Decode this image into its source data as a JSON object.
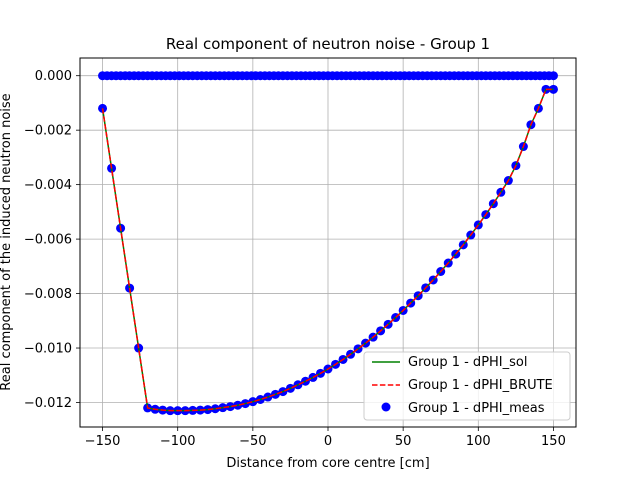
{
  "chart_data": {
    "type": "line",
    "title": "Real component of neutron noise - Group 1",
    "xlabel": "Distance from core centre [cm]",
    "ylabel": "Real component of the induced neutron noise",
    "xlim": [
      -165,
      165
    ],
    "ylim": [
      -0.0129,
      0.00065
    ],
    "grid": true,
    "legend_position": "lower-right",
    "x_ticks": [
      -150,
      -100,
      -50,
      0,
      50,
      100,
      150
    ],
    "x_tick_labels": [
      "−150",
      "−100",
      "−50",
      "0",
      "50",
      "100",
      "150"
    ],
    "y_ticks": [
      0.0,
      -0.002,
      -0.004,
      -0.006,
      -0.008,
      -0.01,
      -0.012
    ],
    "y_tick_labels": [
      "0.000",
      "−0.002",
      "−0.004",
      "−0.006",
      "−0.008",
      "−0.010",
      "−0.012"
    ],
    "x": [
      -150,
      -145,
      -140,
      -135,
      -130,
      -125,
      -120,
      -115,
      -110,
      -105,
      -100,
      -95,
      -90,
      -85,
      -80,
      -75,
      -70,
      -65,
      -60,
      -55,
      -50,
      -45,
      -40,
      -35,
      -30,
      -25,
      -20,
      -15,
      -10,
      -5,
      0,
      5,
      10,
      15,
      20,
      25,
      30,
      35,
      40,
      45,
      50,
      55,
      60,
      65,
      70,
      75,
      80,
      85,
      90,
      95,
      100,
      105,
      110,
      115,
      120,
      125,
      130,
      135,
      140,
      145,
      150
    ],
    "series": [
      {
        "name": "Group 1 - dPHI_sol",
        "kind": "line",
        "color": "#008000",
        "style": "solid",
        "x": [
          -150,
          -144,
          -138,
          -132,
          -126,
          -120,
          -115,
          -110,
          -105,
          -100,
          -95,
          -90,
          -85,
          -80,
          -75,
          -70,
          -65,
          -60,
          -55,
          -50,
          -45,
          -40,
          -35,
          -30,
          -25,
          -20,
          -15,
          -10,
          -5,
          0,
          5,
          10,
          15,
          20,
          25,
          30,
          35,
          40,
          45,
          50,
          55,
          60,
          65,
          70,
          75,
          80,
          85,
          90,
          95,
          100,
          105,
          110,
          115,
          120,
          125,
          130,
          135,
          140,
          145,
          150
        ],
        "values": [
          -0.0012,
          -0.0034,
          -0.0056,
          -0.0078,
          -0.01,
          -0.0122,
          -0.01225,
          -0.01228,
          -0.0123,
          -0.0123,
          -0.0123,
          -0.01229,
          -0.01228,
          -0.01226,
          -0.01223,
          -0.01219,
          -0.01215,
          -0.0121,
          -0.01204,
          -0.01197,
          -0.01189,
          -0.0118,
          -0.0117,
          -0.0116,
          -0.01148,
          -0.01135,
          -0.01122,
          -0.01108,
          -0.01093,
          -0.01077,
          -0.0106,
          -0.01042,
          -0.01023,
          -0.01003,
          -0.00982,
          -0.0096,
          -0.00937,
          -0.00913,
          -0.00888,
          -0.00862,
          -0.00835,
          -0.00808,
          -0.00779,
          -0.0075,
          -0.00719,
          -0.00688,
          -0.00655,
          -0.00621,
          -0.00585,
          -0.00548,
          -0.0051,
          -0.0047,
          -0.00428,
          -0.00385,
          -0.0033,
          -0.0026,
          -0.0018,
          -0.0012,
          -0.0005,
          -0.0005
        ]
      },
      {
        "name": "Group 1 - dPHI_BRUTE",
        "kind": "line",
        "color": "#ff0000",
        "style": "dashed",
        "x": [
          -150,
          -144,
          -138,
          -132,
          -126,
          -120,
          -115,
          -110,
          -105,
          -100,
          -95,
          -90,
          -85,
          -80,
          -75,
          -70,
          -65,
          -60,
          -55,
          -50,
          -45,
          -40,
          -35,
          -30,
          -25,
          -20,
          -15,
          -10,
          -5,
          0,
          5,
          10,
          15,
          20,
          25,
          30,
          35,
          40,
          45,
          50,
          55,
          60,
          65,
          70,
          75,
          80,
          85,
          90,
          95,
          100,
          105,
          110,
          115,
          120,
          125,
          130,
          135,
          140,
          145,
          150
        ],
        "values": [
          -0.0012,
          -0.0034,
          -0.0056,
          -0.0078,
          -0.01,
          -0.0122,
          -0.01225,
          -0.01228,
          -0.0123,
          -0.0123,
          -0.0123,
          -0.01229,
          -0.01228,
          -0.01226,
          -0.01223,
          -0.01219,
          -0.01215,
          -0.0121,
          -0.01204,
          -0.01197,
          -0.01189,
          -0.0118,
          -0.0117,
          -0.0116,
          -0.01148,
          -0.01135,
          -0.01122,
          -0.01108,
          -0.01093,
          -0.01077,
          -0.0106,
          -0.01042,
          -0.01023,
          -0.01003,
          -0.00982,
          -0.0096,
          -0.00937,
          -0.00913,
          -0.00888,
          -0.00862,
          -0.00835,
          -0.00808,
          -0.00779,
          -0.0075,
          -0.00719,
          -0.00688,
          -0.00655,
          -0.00621,
          -0.00585,
          -0.00548,
          -0.0051,
          -0.0047,
          -0.00428,
          -0.00385,
          -0.0033,
          -0.0026,
          -0.0018,
          -0.0012,
          -0.0005,
          -0.0005
        ]
      },
      {
        "name": "Group 1 - dPHI_meas",
        "kind": "scatter",
        "color": "#0000ff",
        "x": [
          -150,
          -144,
          -138,
          -132,
          -126,
          -120,
          -115,
          -110,
          -105,
          -100,
          -95,
          -90,
          -85,
          -80,
          -75,
          -70,
          -65,
          -60,
          -55,
          -50,
          -45,
          -40,
          -35,
          -30,
          -25,
          -20,
          -15,
          -10,
          -5,
          0,
          5,
          10,
          15,
          20,
          25,
          30,
          35,
          40,
          45,
          50,
          55,
          60,
          65,
          70,
          75,
          80,
          85,
          90,
          95,
          100,
          105,
          110,
          115,
          120,
          125,
          130,
          135,
          140,
          145,
          150
        ],
        "values": [
          -0.0012,
          -0.0034,
          -0.0056,
          -0.0078,
          -0.01,
          -0.0122,
          -0.01225,
          -0.01228,
          -0.0123,
          -0.0123,
          -0.0123,
          -0.01229,
          -0.01228,
          -0.01226,
          -0.01223,
          -0.01219,
          -0.01215,
          -0.0121,
          -0.01204,
          -0.01197,
          -0.01189,
          -0.0118,
          -0.0117,
          -0.0116,
          -0.01148,
          -0.01135,
          -0.01122,
          -0.01108,
          -0.01093,
          -0.01077,
          -0.0106,
          -0.01042,
          -0.01023,
          -0.01003,
          -0.00982,
          -0.0096,
          -0.00937,
          -0.00913,
          -0.00888,
          -0.00862,
          -0.00835,
          -0.00808,
          -0.00779,
          -0.0075,
          -0.00719,
          -0.00688,
          -0.00655,
          -0.00621,
          -0.00585,
          -0.00548,
          -0.0051,
          -0.0047,
          -0.00428,
          -0.00385,
          -0.0033,
          -0.0026,
          -0.0018,
          -0.0012,
          -0.0005,
          -0.0005
        ]
      },
      {
        "name": "",
        "kind": "scatter",
        "color": "#0000ff",
        "x": [
          -150,
          -147,
          -144,
          -141,
          -138,
          -135,
          -132,
          -129,
          -126,
          -123,
          -120,
          -117,
          -114,
          -111,
          -108,
          -105,
          -102,
          -99,
          -96,
          -93,
          -90,
          -87,
          -84,
          -81,
          -78,
          -75,
          -72,
          -69,
          -66,
          -63,
          -60,
          -57,
          -54,
          -51,
          -48,
          -45,
          -42,
          -39,
          -36,
          -33,
          -30,
          -27,
          -24,
          -21,
          -18,
          -15,
          -12,
          -9,
          -6,
          -3,
          0,
          3,
          6,
          9,
          12,
          15,
          18,
          21,
          24,
          27,
          30,
          33,
          36,
          39,
          42,
          45,
          48,
          51,
          54,
          57,
          60,
          63,
          66,
          69,
          72,
          75,
          78,
          81,
          84,
          87,
          90,
          93,
          96,
          99,
          102,
          105,
          108,
          111,
          114,
          117,
          120,
          123,
          126,
          129,
          132,
          135,
          138,
          141,
          144,
          147,
          150
        ],
        "values": [
          0,
          0,
          0,
          0,
          0,
          0,
          0,
          0,
          0,
          0,
          0,
          0,
          0,
          0,
          0,
          0,
          0,
          0,
          0,
          0,
          0,
          0,
          0,
          0,
          0,
          0,
          0,
          0,
          0,
          0,
          0,
          0,
          0,
          0,
          0,
          0,
          0,
          0,
          0,
          0,
          0,
          0,
          0,
          0,
          0,
          0,
          0,
          0,
          0,
          0,
          0,
          0,
          0,
          0,
          0,
          0,
          0,
          0,
          0,
          0,
          0,
          0,
          0,
          0,
          0,
          0,
          0,
          0,
          0,
          0,
          0,
          0,
          0,
          0,
          0,
          0,
          0,
          0,
          0,
          0,
          0,
          0,
          0,
          0,
          0,
          0,
          0,
          0,
          0,
          0,
          0,
          0,
          0,
          0,
          0,
          0,
          0,
          0,
          0,
          0,
          0
        ]
      },
      {
        "name": "",
        "kind": "line",
        "color": "#0000ff",
        "style": "solid",
        "x": [
          -150,
          150
        ],
        "values": [
          0,
          0
        ]
      }
    ]
  }
}
